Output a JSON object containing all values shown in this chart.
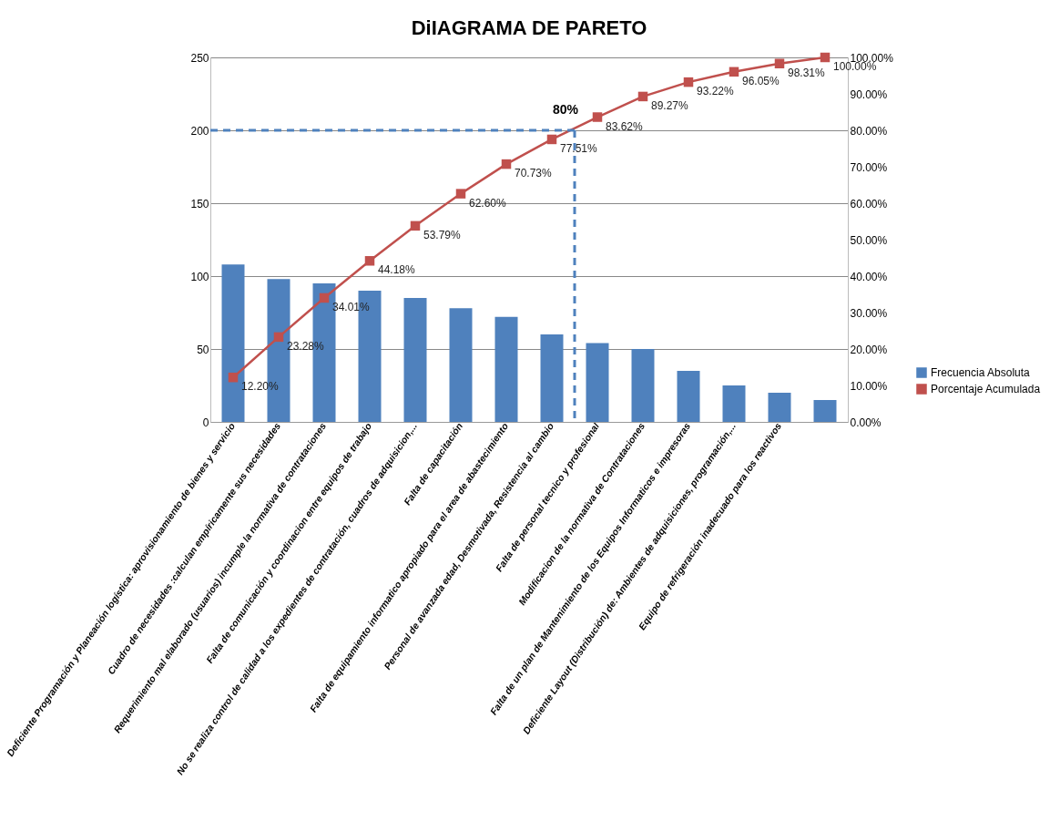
{
  "chart_data": {
    "type": "bar",
    "title": "DiIAGRAMA DE PARETO",
    "categories": [
      "Deficiente Programación y Planeación logística: aprovisionamiento de bienes y servicio",
      "Cuadro de necesidades :calculan empíricamente sus necesidades",
      "Requerimiento mal elaborado (usuarios) incumple la normativa de contrataciones",
      "Falta de comunicación y coordinacion entre equipos de trabajo",
      "No se realiza control de calidad a los expedientes de contratación, cuadros de adquisicion,...",
      "Falta de capacitación",
      "Falta de equipamiento informatico apropiado para el area de abastecimiento",
      "Personal  de avanzada edad, Desmotivada, Resistencia al cambio",
      "Falta de personal tecnico y profesional",
      "Modificacion de la normativa de Contrataciones",
      "Falta de un plan de Mantenimiento de los Equipos Informaticos e impresoras",
      "Deficiente Layout (Distribución) de: Ambientes de  adquisiciones, programación,...",
      "Equipo de refrigeración inadecuado para los reactivos",
      null
    ],
    "series": [
      {
        "name": "Frecuencia Absoluta",
        "color": "#4f81bd",
        "values": [
          108,
          98,
          95,
          90,
          85,
          78,
          72,
          60,
          54,
          50,
          35,
          25,
          20,
          15
        ]
      },
      {
        "name": "Porcentaje Acumulada",
        "type": "line",
        "axis": "y2",
        "color": "#c0504d",
        "marker": "square",
        "values": [
          12.2,
          23.28,
          34.01,
          44.18,
          53.79,
          62.6,
          70.73,
          77.51,
          83.62,
          89.27,
          93.22,
          96.05,
          98.31,
          100.0
        ],
        "value_labels": [
          "12.20%",
          "23.28%",
          "34.01%",
          "44.18%",
          "53.79%",
          "62.60%",
          "70.73%",
          "77.51%",
          "83.62%",
          "89.27%",
          "93.22%",
          "96.05%",
          "98.31%",
          "100.00%"
        ]
      }
    ],
    "ylim": [
      0,
      250
    ],
    "yticks": [
      0,
      50,
      100,
      150,
      200,
      250
    ],
    "y2lim": [
      0,
      100
    ],
    "y2ticks": [
      {
        "value": 0,
        "label": "0.00%"
      },
      {
        "value": 10,
        "label": "10.00%"
      },
      {
        "value": 20,
        "label": "20.00%"
      },
      {
        "value": 30,
        "label": "30.00%"
      },
      {
        "value": 40,
        "label": "40.00%"
      },
      {
        "value": 50,
        "label": "50.00%"
      },
      {
        "value": 60,
        "label": "60.00%"
      },
      {
        "value": 70,
        "label": "70.00%"
      },
      {
        "value": 80,
        "label": "80.00%"
      },
      {
        "value": 90,
        "label": "90.00%"
      },
      {
        "value": 100,
        "label": "100.00%"
      }
    ],
    "ref_lines": [
      {
        "axis": "y2",
        "value": 80,
        "label": "80%",
        "color": "#4f81bd",
        "line_style": "dashed"
      },
      {
        "axis": "x",
        "value": "Personal  de avanzada edad, Desmotivada, Resistencia al cambio",
        "color": "#4f81bd",
        "line_style": "dashed"
      }
    ],
    "grid": "y",
    "legend": "right"
  }
}
